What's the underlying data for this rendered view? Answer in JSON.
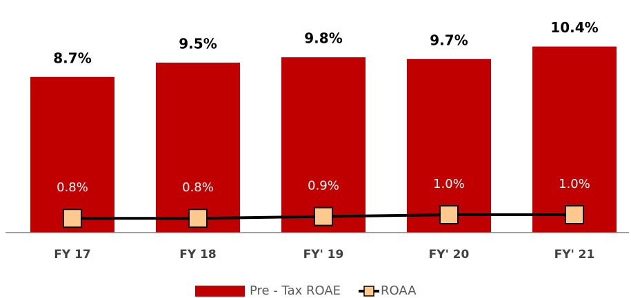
{
  "chart_data": {
    "type": "bar",
    "categories": [
      "FY 17",
      "FY 18",
      "FY' 19",
      "FY' 20",
      "FY' 21"
    ],
    "series": [
      {
        "name": "Pre - Tax ROAE",
        "type": "bar",
        "color": "#c00000",
        "values": [
          8.7,
          9.5,
          9.8,
          9.7,
          10.4
        ],
        "value_labels": [
          "8.7%",
          "9.5%",
          "9.8%",
          "9.7%",
          "10.4%"
        ]
      },
      {
        "name": "ROAA",
        "type": "line",
        "color": "#000000",
        "marker_color": "#fdc98e",
        "values": [
          0.8,
          0.8,
          0.9,
          1.0,
          1.0
        ],
        "value_labels": [
          "0.8%",
          "0.8%",
          "0.9%",
          "1.0%",
          "1.0%"
        ]
      }
    ],
    "ylim": [
      0,
      12
    ],
    "grid": false,
    "legend": "bottom"
  }
}
